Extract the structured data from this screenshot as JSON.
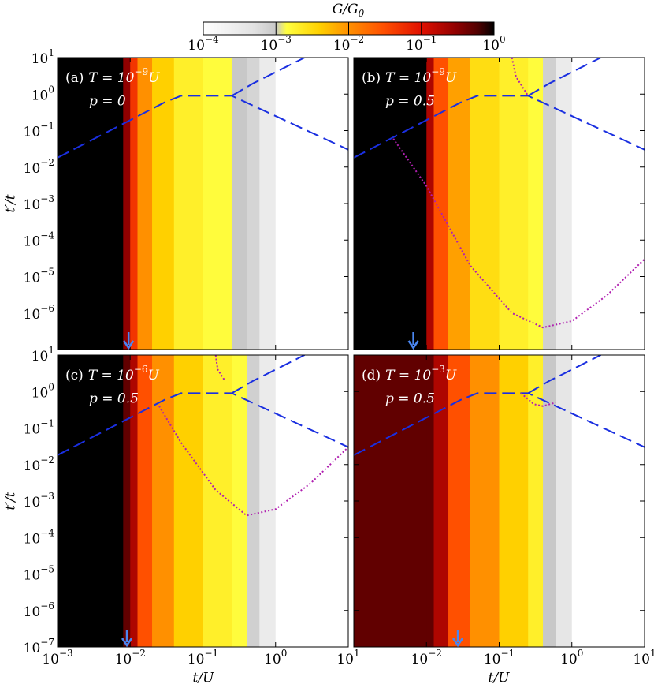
{
  "chart_data": {
    "type": "heatmap",
    "colorbar": {
      "label": "G/G",
      "label_sub": "0",
      "lim": [
        0.0001,
        1
      ],
      "ticks": [
        {
          "value": 0.0001,
          "label": "10",
          "exp": "−4"
        },
        {
          "value": 0.001,
          "label": "10",
          "exp": "−3"
        },
        {
          "value": 0.01,
          "label": "10",
          "exp": "−2"
        },
        {
          "value": 0.1,
          "label": "10",
          "exp": "−1"
        },
        {
          "value": 1,
          "label": "10",
          "exp": "0"
        }
      ],
      "colormap": [
        {
          "value": 0.0001,
          "color": "#ffffff"
        },
        {
          "value": 0.0005,
          "color": "#e2e2e2"
        },
        {
          "value": 0.001,
          "color": "#c8c8c8"
        },
        {
          "value": 0.0014,
          "color": "#ffff40"
        },
        {
          "value": 0.004,
          "color": "#ffd000"
        },
        {
          "value": 0.01,
          "color": "#ff9000"
        },
        {
          "value": 0.03,
          "color": "#ff5000"
        },
        {
          "value": 0.1,
          "color": "#e01000"
        },
        {
          "value": 0.3,
          "color": "#900000"
        },
        {
          "value": 0.6,
          "color": "#500000"
        },
        {
          "value": 1,
          "color": "#000000"
        }
      ]
    },
    "xlabel": "t/U",
    "ylabel": "t′/t",
    "xlim": [
      0.001,
      10
    ],
    "ylim": [
      1e-07,
      10
    ],
    "log_x": true,
    "log_y": true,
    "xticks": [
      {
        "value": 0.001,
        "label": "10",
        "exp": "−3"
      },
      {
        "value": 0.01,
        "label": "10",
        "exp": "−2"
      },
      {
        "value": 0.1,
        "label": "10",
        "exp": "−1"
      },
      {
        "value": 1,
        "label": "10",
        "exp": "0"
      },
      {
        "value": 10,
        "label": "10",
        "exp": "1"
      }
    ],
    "yticks": [
      {
        "value": 1e-07,
        "label": "10",
        "exp": "−7"
      },
      {
        "value": 1e-06,
        "label": "10",
        "exp": "−6"
      },
      {
        "value": 1e-05,
        "label": "10",
        "exp": "−5"
      },
      {
        "value": 0.0001,
        "label": "10",
        "exp": "−4"
      },
      {
        "value": 0.001,
        "label": "10",
        "exp": "−3"
      },
      {
        "value": 0.01,
        "label": "10",
        "exp": "−2"
      },
      {
        "value": 0.1,
        "label": "10",
        "exp": "−1"
      },
      {
        "value": 1,
        "label": "10",
        "exp": "0"
      },
      {
        "value": 10,
        "label": "10",
        "exp": "1"
      }
    ],
    "bins": [
      0.001,
      0.008,
      0.01,
      0.0126,
      0.02,
      0.04,
      0.1,
      0.25,
      0.4,
      0.6,
      1,
      3,
      10
    ],
    "dashed_color": "#1a2fe0",
    "dotted_color": "#b020b0",
    "arrow_color": "#4a86f0",
    "panels": [
      {
        "panel": "(a)",
        "t_base": "T = 10",
        "t_exp": "−9",
        "t_unit": "U",
        "param": "p = 0",
        "values": [
          1,
          0.3,
          0.05,
          0.01,
          0.004,
          0.002,
          0.0015,
          0.001,
          0.0007,
          0.0003,
          0.0001,
          0.0001
        ],
        "dashed": {
          "x": [
            0.001,
            0.03,
            0.05,
            0.25,
            10,
            null,
            0.25,
            0.5,
            1,
            2.5
          ],
          "y": [
            0.018,
            0.6,
            0.9,
            0.9,
            0.03,
            null,
            0.9,
            2,
            4,
            10
          ]
        },
        "dotted": {
          "x": [],
          "y": []
        },
        "arrow_x": 0.0095
      },
      {
        "panel": "(b)",
        "t_base": "T = 10",
        "t_exp": "−9",
        "t_unit": "U",
        "param": "p = 0.5",
        "values": [
          1,
          1,
          0.2,
          0.03,
          0.008,
          0.003,
          0.002,
          0.0015,
          0.0008,
          0.0003,
          0.0001,
          0.0001
        ],
        "dashed": {
          "x": [
            0.001,
            0.03,
            0.05,
            0.25,
            10,
            null,
            0.25,
            0.5,
            1,
            2.5
          ],
          "y": [
            0.018,
            0.6,
            0.9,
            0.9,
            0.03,
            null,
            0.9,
            2,
            4,
            10
          ]
        },
        "dotted": {
          "x": [
            0.0035,
            0.01,
            0.04,
            0.15,
            0.4,
            1,
            3,
            10,
            null,
            0.15,
            0.17,
            0.25
          ],
          "y": [
            0.06,
            0.003,
            2e-05,
            1e-06,
            4e-07,
            6e-07,
            3e-06,
            3e-05,
            null,
            10,
            3,
            0.9
          ]
        },
        "arrow_x": 0.0066
      },
      {
        "panel": "(c)",
        "t_base": "T = 10",
        "t_exp": "−6",
        "t_unit": "U",
        "param": "p = 0.5",
        "values": [
          1,
          0.5,
          0.2,
          0.03,
          0.01,
          0.004,
          0.002,
          0.0015,
          0.0008,
          0.0003,
          0.0001,
          0.0001
        ],
        "dashed": {
          "x": [
            0.001,
            0.03,
            0.05,
            0.25,
            10,
            null,
            0.25,
            0.5,
            1,
            2.5
          ],
          "y": [
            0.018,
            0.6,
            0.9,
            0.9,
            0.03,
            null,
            0.9,
            2,
            4,
            10
          ]
        },
        "dotted": {
          "x": [
            0.025,
            0.05,
            0.15,
            0.4,
            1,
            3,
            10,
            null,
            0.15,
            0.16,
            0.2
          ],
          "y": [
            0.4,
            0.04,
            0.002,
            0.0004,
            0.0006,
            0.003,
            0.03,
            null,
            10,
            4,
            2
          ]
        },
        "arrow_x": 0.009
      },
      {
        "panel": "(d)",
        "t_base": "T = 10",
        "t_exp": "−3",
        "t_unit": "U",
        "param": "p = 0.5",
        "values": [
          0.5,
          0.5,
          0.5,
          0.2,
          0.03,
          0.01,
          0.004,
          0.002,
          0.001,
          0.0004,
          0.0001,
          0.0001
        ],
        "dashed": {
          "x": [
            0.001,
            0.03,
            0.05,
            0.25,
            10,
            null,
            0.25,
            0.5,
            1,
            2.5
          ],
          "y": [
            0.018,
            0.6,
            0.9,
            0.9,
            0.03,
            null,
            0.9,
            2,
            4,
            10
          ]
        },
        "dotted": {
          "x": [
            0.2,
            0.3,
            0.4,
            0.6
          ],
          "y": [
            0.9,
            0.45,
            0.4,
            0.5
          ]
        },
        "arrow_x": 0.027
      }
    ]
  }
}
